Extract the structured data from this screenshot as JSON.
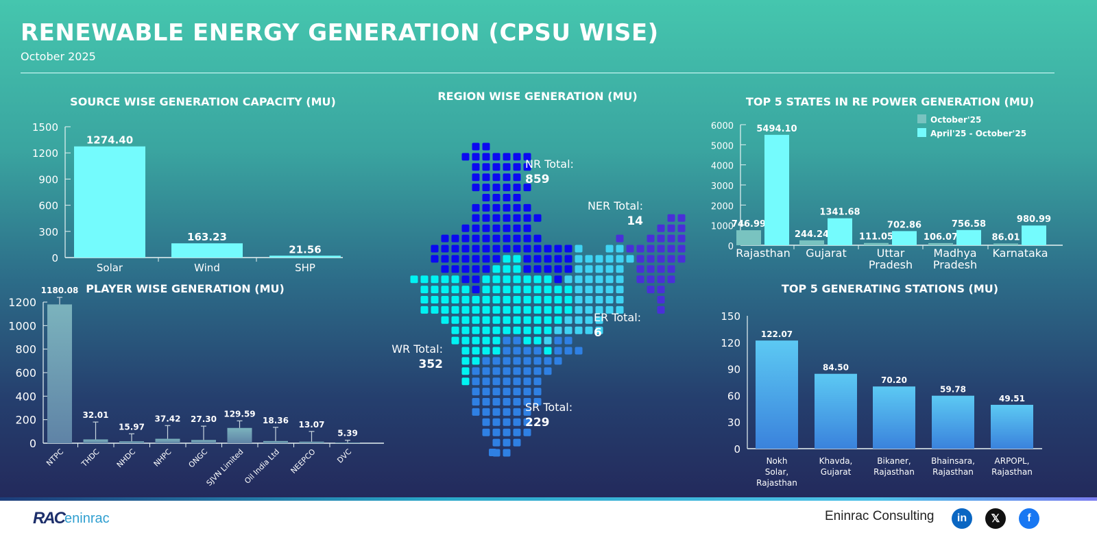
{
  "header": {
    "title": "RENEWABLE ENERGY GENERATION (CPSU WISE)",
    "subtitle": "October 2025"
  },
  "colors": {
    "bar_source": "#74fbfd",
    "bar_player": "#6e98b4",
    "bar_oct": "#79c3c0",
    "bar_apr": "#74fbfd",
    "bar_station": "#4aa6ec",
    "region_nr": "#0a0af0",
    "region_wr": "#00f3f3",
    "region_er": "#3fd3f3",
    "region_sr": "#2f80e3",
    "region_ner": "#4a2fd8"
  },
  "chart_data": [
    {
      "type": "bar",
      "title": "SOURCE WISE GENERATION CAPACITY (MU)",
      "categories": [
        "Solar",
        "Wind",
        "SHP"
      ],
      "values": [
        1274.4,
        163.23,
        21.56
      ],
      "labels": [
        "1274.40",
        "163.23",
        "21.56"
      ],
      "ylim": [
        0,
        1500
      ],
      "yticks": [
        "0",
        "300",
        "600",
        "900",
        "1200",
        "1500"
      ],
      "grid": false
    },
    {
      "type": "bar",
      "title": "PLAYER WISE GENERATION (MU)",
      "categories": [
        "NTPC",
        "THDC",
        "NHDC",
        "NHPC",
        "ONGC",
        "SJVN Limited",
        "Oil India Ltd",
        "NEEPCO",
        "DVC"
      ],
      "values": [
        1180.08,
        32.01,
        15.97,
        37.42,
        27.3,
        129.59,
        18.36,
        13.07,
        5.39
      ],
      "labels": [
        "1180.08",
        "32.01",
        "15.97",
        "37.42",
        "27.30",
        "129.59",
        "18.36",
        "13.07",
        "5.39"
      ],
      "error_bar_tops": [
        1240,
        180,
        80,
        150,
        145,
        190,
        135,
        100,
        25
      ],
      "ylim": [
        0,
        1200
      ],
      "yticks": [
        "0",
        "200",
        "400",
        "600",
        "800",
        "1000",
        "1200"
      ],
      "grid": false
    },
    {
      "type": "bar",
      "title": "TOP 5 STATES IN RE POWER GENERATION (MU)",
      "categories": [
        "Rajasthan",
        "Gujarat",
        "Uttar Pradesh",
        "Madhya Pradesh",
        "Karnataka"
      ],
      "series": [
        {
          "name": "October'25",
          "values": [
            746.99,
            244.24,
            111.05,
            106.07,
            86.01
          ],
          "labels": [
            "746.99",
            "244.24",
            "111.05",
            "106.07",
            "86.01"
          ]
        },
        {
          "name": "April'25 - October'25",
          "values": [
            5494.1,
            1341.68,
            702.86,
            756.58,
            980.99
          ],
          "labels": [
            "5494.10",
            "1341.68",
            "702.86",
            "756.58",
            "980.99"
          ]
        }
      ],
      "ylim": [
        0,
        6000
      ],
      "yticks": [
        "0",
        "1000",
        "2000",
        "3000",
        "4000",
        "5000",
        "6000"
      ],
      "legend": "top-right",
      "grid": false
    },
    {
      "type": "bar",
      "title": "TOP 5 GENERATING STATIONS (MU)",
      "categories": [
        "Nokh Solar, Rajasthan",
        "Khavda, Gujarat",
        "Bikaner, Rajasthan",
        "Bhainsara, Rajasthan",
        "ARPOPL, Rajasthan"
      ],
      "category_lines": [
        [
          "Nokh",
          "Solar,",
          "Rajasthan"
        ],
        [
          "Khavda,",
          "Gujarat"
        ],
        [
          "Bikaner,",
          "Rajasthan"
        ],
        [
          "Bhainsara,",
          "Rajasthan"
        ],
        [
          "ARPOPL,",
          "Rajasthan"
        ]
      ],
      "values": [
        122.07,
        84.5,
        70.2,
        59.78,
        49.51
      ],
      "labels": [
        "122.07",
        "84.50",
        "70.20",
        "59.78",
        "49.51"
      ],
      "ylim": [
        0,
        150
      ],
      "yticks": [
        "0",
        "30",
        "60",
        "90",
        "120",
        "150"
      ],
      "grid": false
    }
  ],
  "region_map": {
    "title": "REGION WISE GENERATION (MU)",
    "regions": [
      {
        "key": "NR",
        "label": "NR Total:",
        "value": "859"
      },
      {
        "key": "NER",
        "label": "NER Total:",
        "value": "14"
      },
      {
        "key": "ER",
        "label": "ER Total:",
        "value": "6"
      },
      {
        "key": "WR",
        "label": "WR Total:",
        "value": "352"
      },
      {
        "key": "SR",
        "label": "SR Total:",
        "value": "229"
      }
    ]
  },
  "footer": {
    "logo_text": "RAC",
    "logo_sub": "eninrac",
    "company": "Eninrac Consulting",
    "social": [
      {
        "icon": "linkedin-icon",
        "glyph": "in",
        "color": "#0a66c2"
      },
      {
        "icon": "x-icon",
        "glyph": "𝕏",
        "color": "#111111"
      },
      {
        "icon": "facebook-icon",
        "glyph": "f",
        "color": "#1877f2"
      }
    ]
  }
}
